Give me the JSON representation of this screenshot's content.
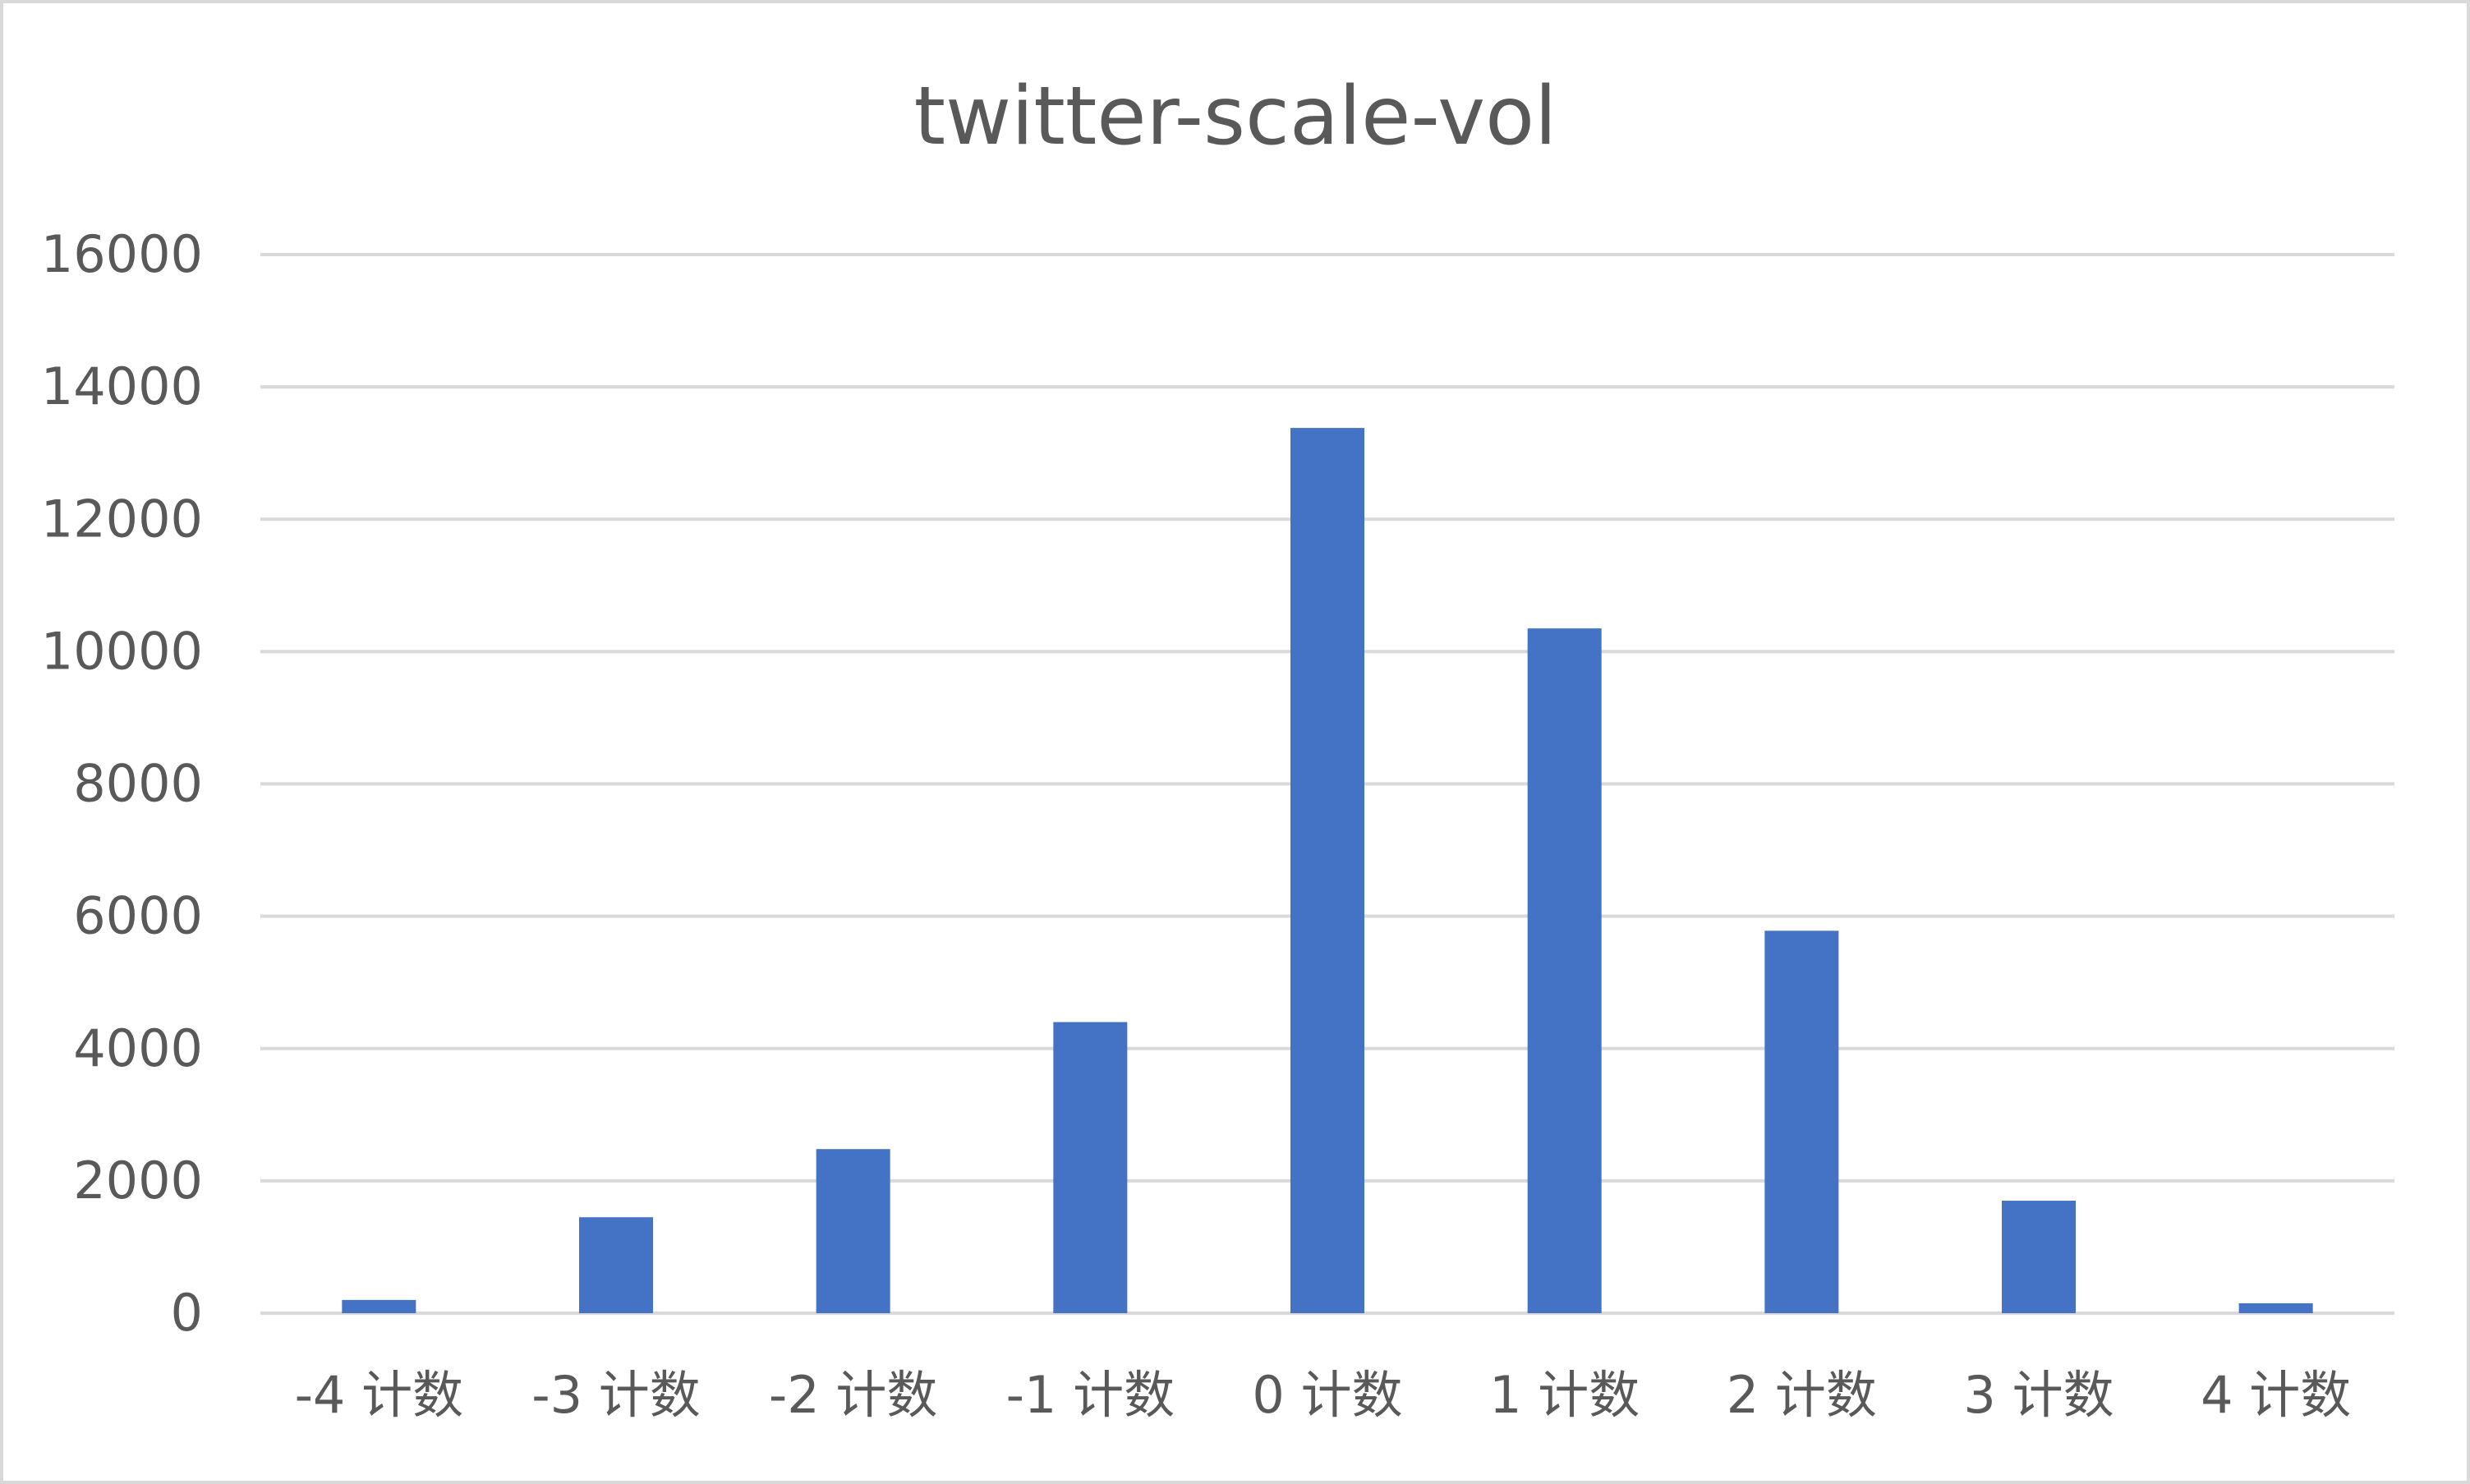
{
  "chart_data": {
    "type": "bar",
    "title": "twitter-scale-vol",
    "xlabel": "",
    "ylabel": "",
    "categories": [
      "-4 计数",
      "-3 计数",
      "-2 计数",
      "-1 计数",
      "0 计数",
      "1 计数",
      "2 计数",
      "3 计数",
      "4 计数"
    ],
    "values": [
      200,
      1450,
      2480,
      4400,
      13380,
      10350,
      5780,
      1700,
      150
    ],
    "ylim": [
      0,
      16000
    ],
    "yticks": [
      0,
      2000,
      4000,
      6000,
      8000,
      10000,
      12000,
      14000,
      16000
    ],
    "grid": true,
    "legend": "none",
    "colors": {
      "bar": "#4472c4",
      "grid": "#d9d9d9",
      "text": "#595959",
      "border": "#d9d9d9",
      "background": "#ffffff"
    }
  }
}
